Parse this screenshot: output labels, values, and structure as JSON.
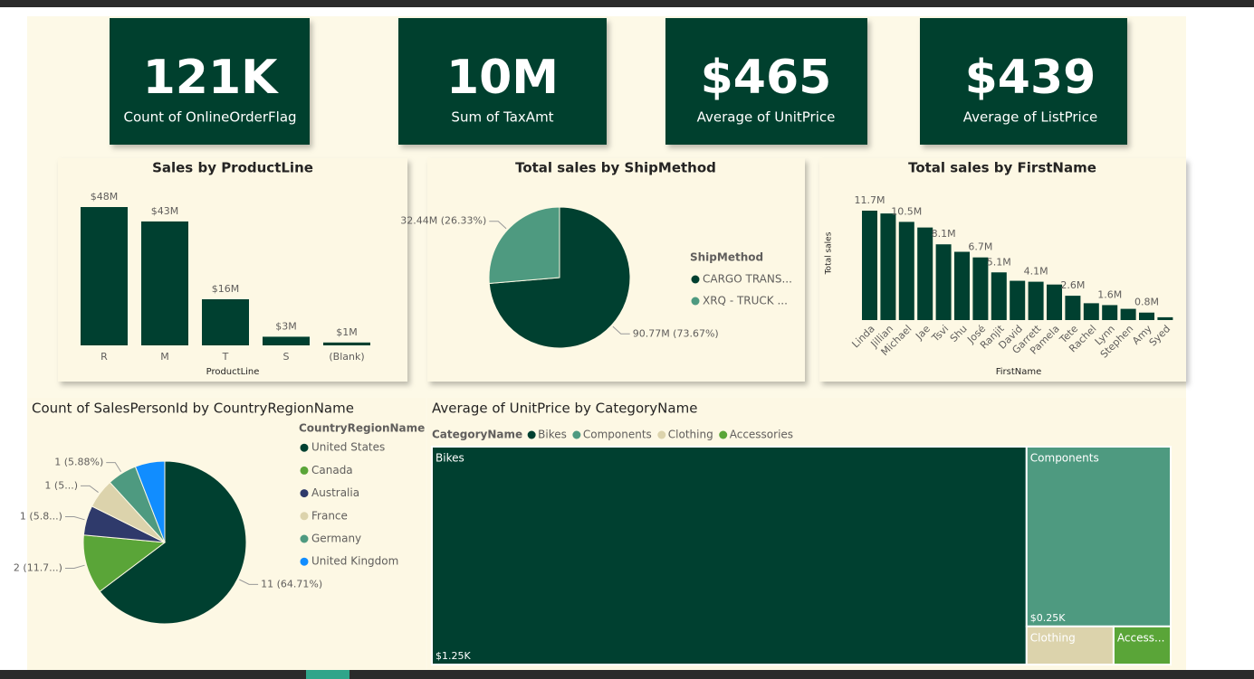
{
  "cards": [
    {
      "value": "121K",
      "label": "Count of OnlineOrderFlag"
    },
    {
      "value": "10M",
      "label": "Sum of TaxAmt"
    },
    {
      "value": "$465",
      "label": "Average of UnitPrice"
    },
    {
      "value": "$439",
      "label": "Average of ListPrice"
    }
  ],
  "chart_data": [
    {
      "type": "bar",
      "title": "Sales by ProductLine",
      "x_label": "ProductLine",
      "categories": [
        "R",
        "M",
        "T",
        "S",
        "(Blank)"
      ],
      "values": [
        48,
        43,
        16,
        3,
        1
      ],
      "value_labels": [
        "$48M",
        "$43M",
        "$16M",
        "$3M",
        "$1M"
      ],
      "color": "#004030"
    },
    {
      "type": "pie",
      "title": "Total sales by ShipMethod",
      "legend_title": "ShipMethod",
      "categories": [
        "CARGO TRANS...",
        "XRQ - TRUCK ..."
      ],
      "values": [
        90.77,
        32.44
      ],
      "value_labels": [
        "90.77M (73.67%)",
        "32.44M (26.33%)"
      ],
      "colors": [
        "#004030",
        "#4e9a80"
      ]
    },
    {
      "type": "bar",
      "title": "Total sales by FirstName",
      "x_label": "FirstName",
      "y_label": "Total sales",
      "categories": [
        "Linda",
        "Jillian",
        "Michael",
        "Jae",
        "Tsvi",
        "Shu",
        "José",
        "Ranjit",
        "David",
        "Garrett",
        "Pamela",
        "Tete",
        "Rachel",
        "Lynn",
        "Stephen",
        "Amy",
        "Syed"
      ],
      "values": [
        11.7,
        11.4,
        10.5,
        9.9,
        8.1,
        7.3,
        6.7,
        5.1,
        4.2,
        4.1,
        3.8,
        2.6,
        1.8,
        1.6,
        1.2,
        0.8,
        0.3
      ],
      "value_labels": [
        "11.7M",
        null,
        "10.5M",
        null,
        "8.1M",
        null,
        "6.7M",
        "5.1M",
        null,
        "4.1M",
        null,
        "2.6M",
        null,
        "1.6M",
        null,
        "0.8M",
        null
      ],
      "color": "#004030"
    },
    {
      "type": "pie",
      "title": "Count of SalesPersonId by CountryRegionName",
      "legend_title": "CountryRegionName",
      "categories": [
        "United States",
        "Canada",
        "Australia",
        "France",
        "Germany",
        "United Kingdom"
      ],
      "values": [
        11,
        2,
        1,
        1,
        1,
        1
      ],
      "value_labels": [
        "11 (64.71%)",
        "2 (11.7...)",
        "1 (5.8...)",
        "1 (5...)",
        "1 (5.88%)",
        null
      ],
      "colors": [
        "#004030",
        "#5aa538",
        "#2f3a6b",
        "#dcd3ac",
        "#4e9a80",
        "#118dff"
      ]
    },
    {
      "type": "treemap",
      "title": "Average of UnitPrice by CategoryName",
      "legend_title": "CategoryName",
      "categories": [
        "Bikes",
        "Components",
        "Clothing",
        "Accessories"
      ],
      "tile_labels": [
        "Bikes",
        "Components",
        "Clothing",
        "Access..."
      ],
      "values": [
        1.25,
        0.25,
        0.032,
        0.021
      ],
      "value_labels": [
        "$1.25K",
        "$0.25K",
        null,
        null
      ],
      "colors": [
        "#004030",
        "#4e9a80",
        "#dcd3ac",
        "#5aa538"
      ]
    }
  ]
}
